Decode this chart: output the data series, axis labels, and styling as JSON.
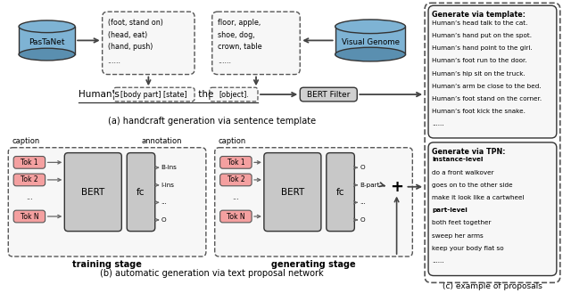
{
  "fig_width": 6.4,
  "fig_height": 3.29,
  "bg_color": "#ffffff",
  "template_text_title": "Generate via template:",
  "template_lines": [
    "Human’s head talk to the cat.",
    "Human’s hand put on the spot.",
    "Human’s hand point to the girl.",
    "Human’s foot run to the door.",
    "Human’s hip sit on the truck.",
    "Human’s arm be close to the bed.",
    "Human’s foot stand on the corner.",
    "Human’s foot kick the snake.",
    "......"
  ],
  "tpn_text_title": "Generate via TPN:",
  "tpn_lines_bold": [
    "instance-level",
    "part-level"
  ],
  "tpn_lines": [
    "instance-level",
    "do a front walkover",
    "goes on to the other side",
    "make it look like a cartwheel",
    "part-level",
    "both feet together",
    "sweep her arms",
    "keep your body flat so",
    "......"
  ],
  "caption_a": "(a) handcraft generation via sentence template",
  "caption_b": "(b) automatic generation via text proposal network",
  "caption_c": "(c) example of proposals",
  "pasta_color": "#7eb3d4",
  "vg_color": "#7eb3d4",
  "bert_filter_color": "#d0d0d0",
  "tok_color": "#f4a0a0",
  "bert_color": "#c8c8c8",
  "fc_color": "#c8c8c8",
  "arrow_color": "#555555",
  "dashed_color": "#555555"
}
